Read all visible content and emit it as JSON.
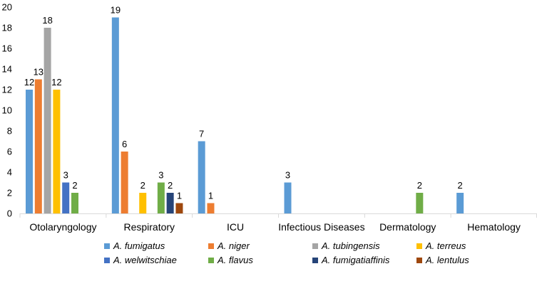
{
  "chart_data": {
    "type": "bar",
    "title": "",
    "xlabel": "",
    "ylabel": "",
    "ylim": [
      0,
      20
    ],
    "yticks": [
      0,
      2,
      4,
      6,
      8,
      10,
      12,
      14,
      16,
      18,
      20
    ],
    "categories": [
      "Otolaryngology",
      "Respiratory",
      "ICU",
      "Infectious Diseases",
      "Dermatology",
      "Hematology"
    ],
    "series": [
      {
        "name": "A. fumigatus",
        "color": "#5B9BD5",
        "values": [
          12,
          19,
          7,
          3,
          null,
          2
        ]
      },
      {
        "name": "A. niger",
        "color": "#ED7D31",
        "values": [
          13,
          6,
          1,
          null,
          null,
          null
        ]
      },
      {
        "name": "A. tubingensis",
        "color": "#A5A5A5",
        "values": [
          18,
          null,
          null,
          null,
          null,
          null
        ]
      },
      {
        "name": "A. terreus",
        "color": "#FFC000",
        "values": [
          12,
          2,
          null,
          null,
          null,
          null
        ]
      },
      {
        "name": "A. welwitschiae",
        "color": "#4472C4",
        "values": [
          3,
          null,
          null,
          null,
          null,
          null
        ]
      },
      {
        "name": "A. flavus",
        "color": "#70AD47",
        "values": [
          2,
          3,
          null,
          null,
          2,
          null
        ]
      },
      {
        "name": "A. fumigatiaffinis",
        "color": "#264478",
        "values": [
          null,
          2,
          null,
          null,
          null,
          null
        ]
      },
      {
        "name": "A. lentulus",
        "color": "#9E480E",
        "values": [
          null,
          1,
          null,
          null,
          null,
          null
        ]
      }
    ],
    "grid": false,
    "legend_position": "bottom"
  }
}
